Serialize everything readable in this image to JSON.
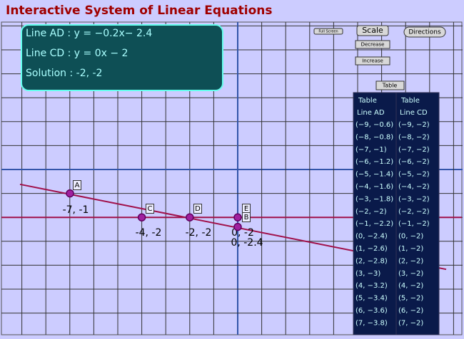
{
  "title": "Interactive System of Linear Equations",
  "info": [
    "Line AD : y = −0.2x− 2.4",
    "Line CD : y = 0x − 2",
    "Solution : -2, -2"
  ],
  "buttons": {
    "full_screen": "Full Screen",
    "scale": "Scale",
    "directions": "Directions",
    "decrease": "Decrease",
    "increase": "Increase",
    "table": "Table"
  },
  "tables": [
    {
      "header": [
        "Table",
        "Line AD"
      ],
      "rows": [
        "(−9, −0.6)",
        "(−8, −0.8)",
        "(−7, −1)",
        "(−6, −1.2)",
        "(−5, −1.4)",
        "(−4, −1.6)",
        "(−3, −1.8)",
        "(−2, −2)",
        "(−1, −2.2)",
        "(0, −2.4)",
        "(1, −2.6)",
        "(2, −2.8)",
        "(3, −3)",
        "(4, −3.2)",
        "(5, −3.4)",
        "(6, −3.6)",
        "(7, −3.8)"
      ]
    },
    {
      "header": [
        "Table",
        "Line CD"
      ],
      "rows": [
        "(−9, −2)",
        "(−8, −2)",
        "(−7, −2)",
        "(−6, −2)",
        "(−5, −2)",
        "(−4, −2)",
        "(−3, −2)",
        "(−2, −2)",
        "(−1, −2)",
        "(0, −2)",
        "(1, −2)",
        "(2, −2)",
        "(3, −2)",
        "(4, −2)",
        "(5, −2)",
        "(6, −2)",
        "(7, −2)"
      ]
    }
  ],
  "points": [
    {
      "name": "A",
      "label": "-7, -1"
    },
    {
      "name": "C",
      "label": "-4, -2"
    },
    {
      "name": "D",
      "label": "-2, -2"
    },
    {
      "name": "E",
      "label": "0, -2"
    },
    {
      "name": "B",
      "label": "0, -2.4"
    }
  ]
}
